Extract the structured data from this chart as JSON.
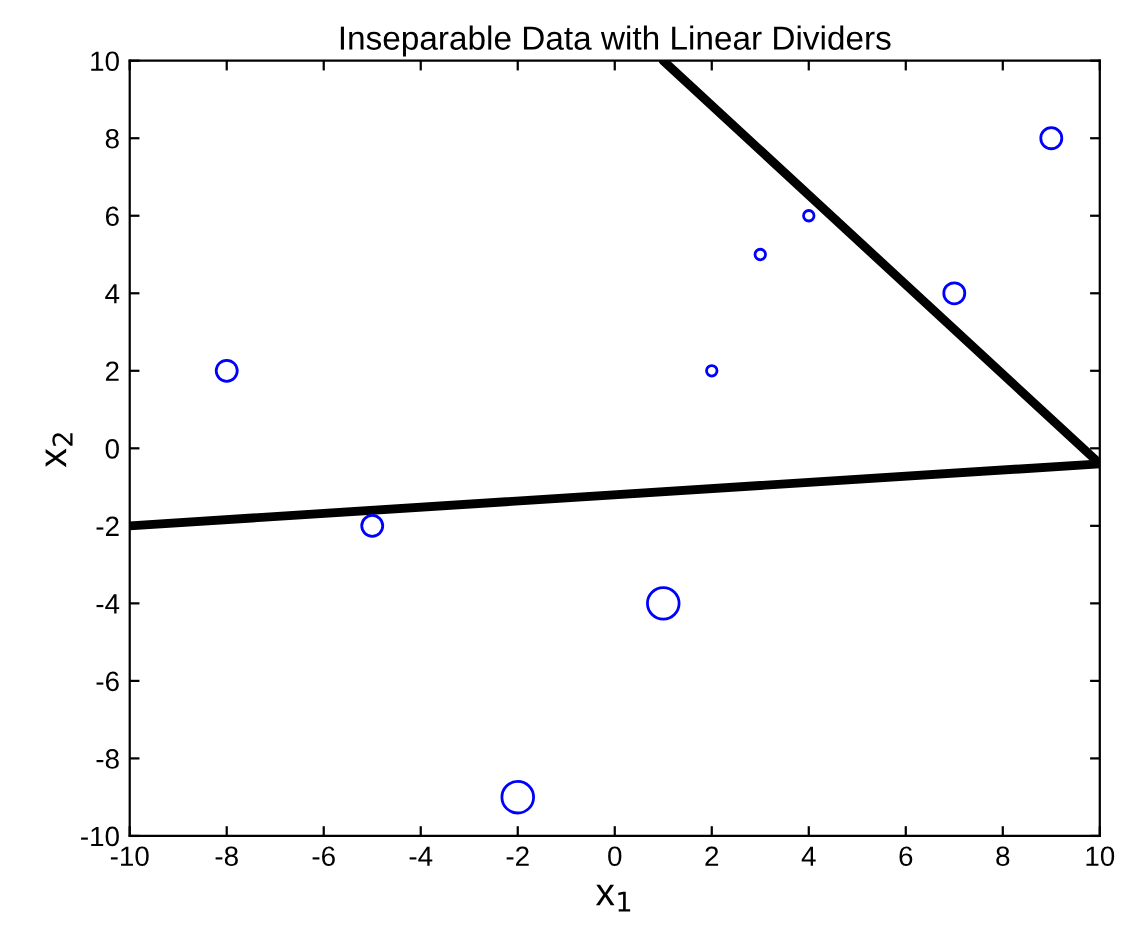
{
  "chart_data": {
    "type": "bubble",
    "title": "Inseparable Data with Linear Dividers",
    "xlabel": "x$_{1}$",
    "ylabel": "x$_{2}$",
    "xlim": [
      -10,
      10
    ],
    "ylim": [
      -10,
      10
    ],
    "xticks": [
      -10,
      -8,
      -6,
      -4,
      -2,
      0,
      2,
      4,
      6,
      8,
      10
    ],
    "yticks": [
      -10,
      -8,
      -6,
      -4,
      -2,
      0,
      2,
      4,
      6,
      8,
      10
    ],
    "grid": false,
    "legend": false,
    "series": [
      {
        "marker": "circle",
        "color": "#0000ff",
        "x": [
          -8,
          -5,
          -2,
          1,
          2,
          3,
          4,
          7,
          9
        ],
        "values": [
          2,
          -2,
          -9,
          -4,
          2,
          5,
          6,
          4,
          8
        ],
        "sizes": [
          0.44,
          0.44,
          1,
          1,
          0.11,
          0.11,
          0.11,
          0.44,
          0.44
        ]
      },
      {
        "type": "line",
        "color": "#000000",
        "x": [
          -10,
          10
        ],
        "values": [
          -2,
          -0.4
        ],
        "line_style": "solid"
      },
      {
        "type": "line",
        "color": "#000000",
        "x": [
          1,
          10
        ],
        "values": [
          10,
          -0.4
        ],
        "line_style": "solid"
      }
    ]
  }
}
